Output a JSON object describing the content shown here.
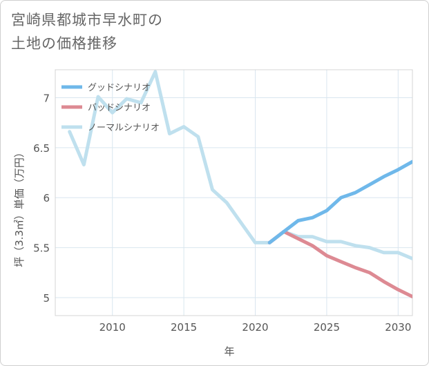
{
  "title_lines": [
    "宮崎県都城市早水町の",
    "土地の価格推移"
  ],
  "chart_data": {
    "type": "line",
    "title": "宮崎県都城市早水町の土地の価格推移",
    "xlabel": "年",
    "ylabel": "坪（3.3㎡）単価（万円）",
    "xlim": [
      2006,
      2031
    ],
    "ylim": [
      4.82,
      7.28
    ],
    "xticks": [
      2010,
      2015,
      2020,
      2025,
      2030
    ],
    "yticks": [
      5,
      5.5,
      6,
      6.5,
      7
    ],
    "grid": true,
    "legend_position": "top-left",
    "series": [
      {
        "name": "グッドシナリオ",
        "color": "#6fb8ea",
        "x": [
          2021,
          2022,
          2023,
          2024,
          2025,
          2026,
          2027,
          2028,
          2029,
          2030,
          2031
        ],
        "values": [
          5.55,
          5.66,
          5.77,
          5.8,
          5.87,
          6.0,
          6.05,
          6.13,
          6.21,
          6.28,
          6.36
        ]
      },
      {
        "name": "バッドシナリオ",
        "color": "#dd8a93",
        "x": [
          2021,
          2022,
          2023,
          2024,
          2025,
          2026,
          2027,
          2028,
          2029,
          2030,
          2031
        ],
        "values": [
          5.55,
          5.66,
          5.59,
          5.52,
          5.42,
          5.36,
          5.3,
          5.25,
          5.16,
          5.08,
          5.01
        ]
      },
      {
        "name": "ノーマルシナリオ",
        "color": "#bfe0ee",
        "x": [
          2007,
          2008,
          2009,
          2010,
          2011,
          2012,
          2013,
          2014,
          2015,
          2016,
          2017,
          2018,
          2019,
          2020,
          2021,
          2022,
          2023,
          2024,
          2025,
          2026,
          2027,
          2028,
          2029,
          2030,
          2031
        ],
        "values": [
          6.66,
          6.33,
          7.01,
          6.85,
          6.99,
          6.95,
          7.26,
          6.64,
          6.71,
          6.61,
          6.08,
          5.95,
          5.75,
          5.55,
          5.55,
          5.66,
          5.61,
          5.61,
          5.56,
          5.56,
          5.52,
          5.5,
          5.45,
          5.45,
          5.39
        ]
      }
    ]
  }
}
